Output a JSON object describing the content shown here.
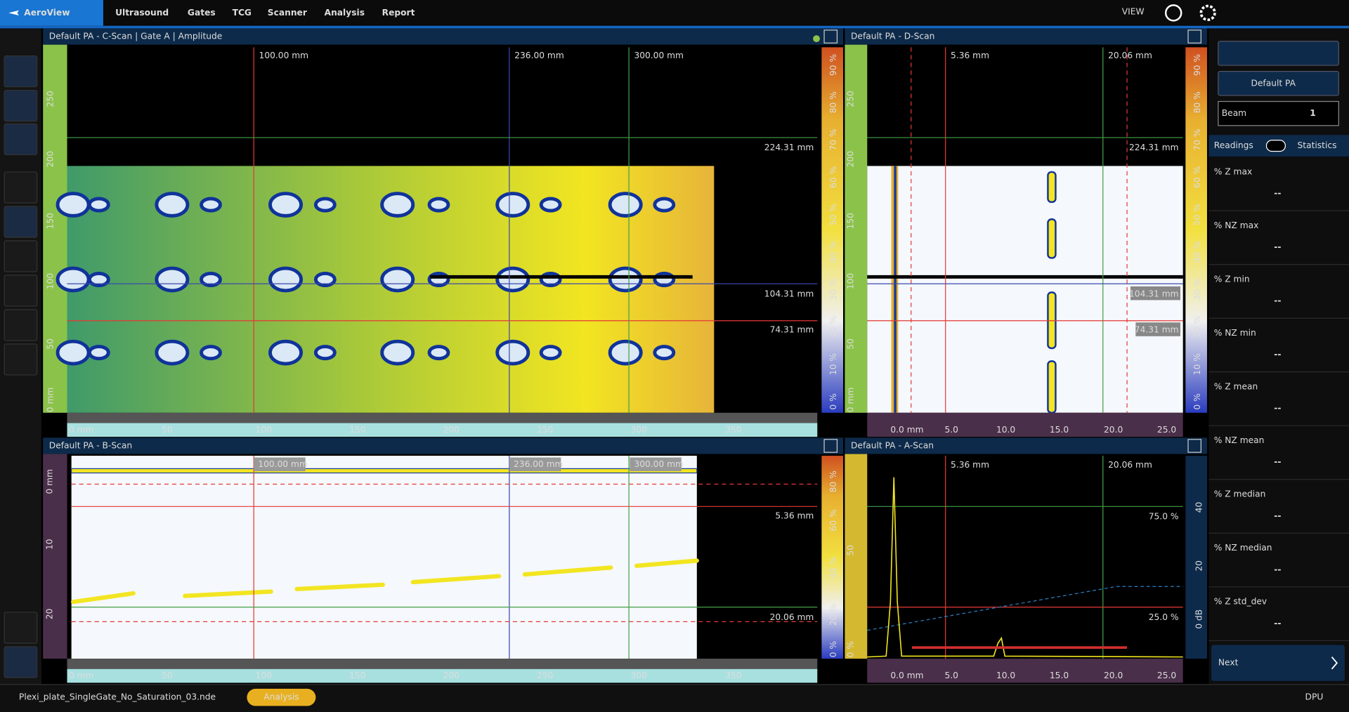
{
  "header": {
    "logo": "AeroView",
    "menu": [
      "Ultrasound",
      "Gates",
      "TCG",
      "Scanner",
      "Analysis",
      "Report"
    ],
    "view": "VIEW"
  },
  "cscan": {
    "title": "Default PA - C-Scan | Gate A | Amplitude",
    "cursors_x": [
      "100.00 mm",
      "236.00 mm",
      "300.00 mm"
    ],
    "cursors_y": [
      "224.31 mm",
      "104.31 mm",
      "74.31 mm"
    ],
    "x_axis": [
      "0 mm",
      "50",
      "100",
      "150",
      "200",
      "250",
      "300",
      "350"
    ],
    "y_axis": [
      "0 mm",
      "50",
      "100",
      "150",
      "200",
      "250"
    ],
    "color_scale": [
      "0 %",
      "10 %",
      "20 %",
      "30 %",
      "40 %",
      "50 %",
      "60 %",
      "70 %",
      "80 %",
      "90 %"
    ]
  },
  "dscan": {
    "title": "Default PA - D-Scan",
    "cursors_x": [
      "5.36 mm",
      "20.06 mm"
    ],
    "cursors_y": [
      "224.31 mm",
      "104.31 mm",
      "74.31 mm"
    ],
    "x_axis": [
      "0.0 mm",
      "5.0",
      "10.0",
      "15.0",
      "20.0",
      "25.0"
    ],
    "y_axis": [
      "0 mm",
      "50",
      "100",
      "150",
      "200",
      "250"
    ],
    "color_scale": [
      "0 %",
      "10 %",
      "20 %",
      "30 %",
      "40 %",
      "50 %",
      "60 %",
      "70 %",
      "80 %",
      "90 %"
    ]
  },
  "bscan": {
    "title": "Default PA - B-Scan",
    "cursors_x": [
      "100.00 mm",
      "236.00 mm",
      "300.00 mm"
    ],
    "cursors_y": [
      "5.36 mm",
      "20.06 mm"
    ],
    "x_axis": [
      "0 mm",
      "50",
      "100",
      "150",
      "200",
      "250",
      "300",
      "350"
    ],
    "y_axis": [
      "0 mm",
      "10",
      "20"
    ],
    "color_scale": [
      "0 %",
      "20 %",
      "40 %",
      "60 %",
      "80 %"
    ]
  },
  "ascan": {
    "title": "Default PA - A-Scan",
    "cursors_x": [
      "5.36 mm",
      "20.06 mm"
    ],
    "levels": [
      "75.0 %",
      "25.0 %"
    ],
    "x_axis": [
      "0.0 mm",
      "5.0",
      "10.0",
      "15.0",
      "20.0",
      "25.0"
    ],
    "y_axis": [
      "0 %",
      "50"
    ],
    "db_axis": [
      "0 dB",
      "20",
      "40"
    ]
  },
  "sidebar": {
    "setup": "Default PA",
    "beam_label": "Beam",
    "beam_value": "1",
    "tab_readings": "Readings",
    "tab_statistics": "Statistics",
    "readings": [
      {
        "label": "% Z max",
        "value": "--"
      },
      {
        "label": "% NZ max",
        "value": "--"
      },
      {
        "label": "% Z min",
        "value": "--"
      },
      {
        "label": "% NZ min",
        "value": "--"
      },
      {
        "label": "% Z mean",
        "value": "--"
      },
      {
        "label": "% NZ mean",
        "value": "--"
      },
      {
        "label": "% Z median",
        "value": "--"
      },
      {
        "label": "% NZ median",
        "value": "--"
      },
      {
        "label": "% Z std_dev",
        "value": "--"
      }
    ],
    "next": "Next"
  },
  "status": {
    "file": "Plexi_plate_SingleGate_No_Saturation_03.nde",
    "mode": "Analysis",
    "dpu": "DPU"
  }
}
